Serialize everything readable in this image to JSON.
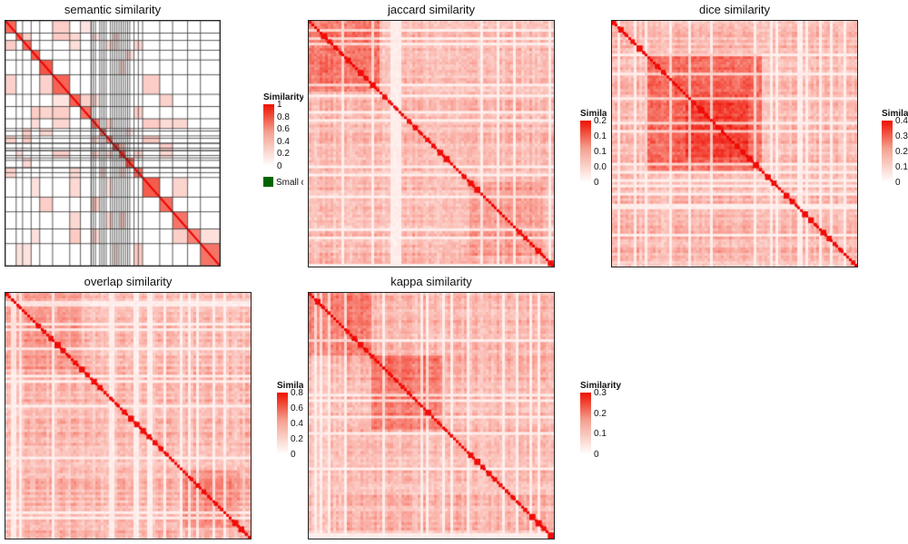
{
  "colors": {
    "low": "#ffffff",
    "high": "#ee1100",
    "border": "#222222",
    "small_swatch": "#006400"
  },
  "chart_data": [
    {
      "type": "heatmap",
      "title": "semantic similarity",
      "legend": {
        "title": "Similarity",
        "ticks": [
          "1",
          "0.8",
          "0.6",
          "0.4",
          "0.2",
          "0"
        ],
        "extra_label": "Small cluster"
      },
      "style": "blocks_with_grid",
      "n": 240
    },
    {
      "type": "heatmap",
      "title": "jaccard similarity",
      "legend": {
        "title": "Similarity",
        "ticks": [
          "0.2",
          "0.1",
          "0.1",
          "0.0",
          "0"
        ]
      },
      "style": "dense",
      "n": 270
    },
    {
      "type": "heatmap",
      "title": "dice similarity",
      "legend": {
        "title": "Similarity",
        "ticks": [
          "0.4",
          "0.3",
          "0.2",
          "0.1",
          "0"
        ]
      },
      "style": "dense",
      "n": 270
    },
    {
      "type": "heatmap",
      "title": "overlap similarity",
      "legend": {
        "title": "Similarity",
        "ticks": [
          "0.8",
          "0.6",
          "0.4",
          "0.2",
          "0"
        ]
      },
      "style": "dense",
      "n": 270
    },
    {
      "type": "heatmap",
      "title": "kappa similarity",
      "legend": {
        "title": "Similarity",
        "ticks": [
          "0.3",
          "0.2",
          "0.1",
          "0"
        ]
      },
      "style": "dense",
      "n": 270
    }
  ]
}
